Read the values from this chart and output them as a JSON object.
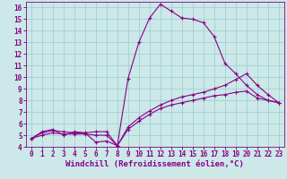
{
  "background_color": "#cce8e8",
  "grid_color": "#99cccc",
  "line_color": "#880088",
  "xlabel": "Windchill (Refroidissement éolien,°C)",
  "xlim": [
    -0.5,
    23.5
  ],
  "ylim": [
    4,
    16.5
  ],
  "xticks": [
    0,
    1,
    2,
    3,
    4,
    5,
    6,
    7,
    8,
    9,
    10,
    11,
    12,
    13,
    14,
    15,
    16,
    17,
    18,
    19,
    20,
    21,
    22,
    23
  ],
  "yticks": [
    4,
    5,
    6,
    7,
    8,
    9,
    10,
    11,
    12,
    13,
    14,
    15,
    16
  ],
  "series": [
    [
      4.7,
      5.3,
      5.5,
      5.0,
      5.3,
      5.2,
      4.4,
      4.5,
      4.1,
      9.9,
      13.0,
      15.1,
      16.3,
      15.7,
      15.1,
      15.0,
      14.7,
      13.5,
      11.2,
      10.3,
      9.3,
      8.5,
      8.0,
      7.8
    ],
    [
      4.7,
      5.2,
      5.4,
      5.3,
      5.2,
      5.2,
      5.3,
      5.3,
      4.1,
      5.5,
      6.2,
      6.8,
      7.3,
      7.6,
      7.8,
      8.0,
      8.2,
      8.4,
      8.5,
      8.7,
      8.8,
      8.2,
      8.0,
      7.8
    ],
    [
      4.7,
      5.0,
      5.2,
      5.1,
      5.1,
      5.1,
      5.0,
      5.0,
      4.1,
      5.7,
      6.5,
      7.1,
      7.6,
      8.0,
      8.3,
      8.5,
      8.7,
      9.0,
      9.3,
      9.8,
      10.3,
      9.3,
      8.5,
      7.8
    ]
  ],
  "tick_fontsize": 5.5,
  "axis_fontsize": 6.5
}
